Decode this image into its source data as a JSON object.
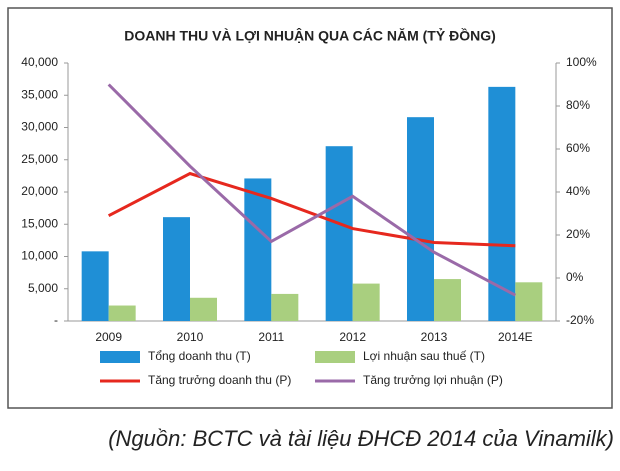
{
  "chart_data": {
    "type": "bar-line",
    "title": "DOANH THU VÀ LỢI NHUẬN QUA CÁC NĂM (TỶ ĐỒNG)",
    "source": "(Nguồn: BCTC và tài liệu ĐHCĐ 2014 của Vinamilk)",
    "categories": [
      "2009",
      "2010",
      "2011",
      "2012",
      "2013",
      "2014E"
    ],
    "series": [
      {
        "name": "Tổng doanh thu (T)",
        "type": "bar",
        "color": "#1f8fd6",
        "values": [
          10800,
          16100,
          22100,
          27100,
          31600,
          36300
        ]
      },
      {
        "name": "Lợi nhuận sau thuế (T)",
        "type": "bar",
        "color": "#a9cf7f",
        "values": [
          2400,
          3600,
          4200,
          5800,
          6500,
          6000
        ]
      },
      {
        "name": "Tăng trưởng doanh thu (P)",
        "type": "line",
        "axis": "y2",
        "color": "#e6281e",
        "values": [
          29,
          48.6,
          37,
          23,
          16.5,
          15
        ]
      },
      {
        "name": "Tăng trưởng lợi nhuận (P)",
        "type": "line",
        "axis": "y2",
        "color": "#9a6aa8",
        "values": [
          90,
          52,
          17,
          38,
          12,
          -8
        ]
      }
    ],
    "ylim": [
      0,
      40000
    ],
    "yticks": [
      {
        "value": 0,
        "label": "-"
      },
      {
        "value": 5000,
        "label": "5,000"
      },
      {
        "value": 10000,
        "label": "10,000"
      },
      {
        "value": 15000,
        "label": "15,000"
      },
      {
        "value": 20000,
        "label": "20,000"
      },
      {
        "value": 25000,
        "label": "25,000"
      },
      {
        "value": 30000,
        "label": "30,000"
      },
      {
        "value": 35000,
        "label": "35,000"
      },
      {
        "value": 40000,
        "label": "40,000"
      }
    ],
    "y2lim": [
      -20,
      100
    ],
    "y2ticks": [
      {
        "value": -20,
        "label": "-20%"
      },
      {
        "value": 0,
        "label": "0%"
      },
      {
        "value": 20,
        "label": "20%"
      },
      {
        "value": 40,
        "label": "40%"
      },
      {
        "value": 60,
        "label": "60%"
      },
      {
        "value": 80,
        "label": "80%"
      },
      {
        "value": 100,
        "label": "100%"
      }
    ],
    "grid": false
  }
}
